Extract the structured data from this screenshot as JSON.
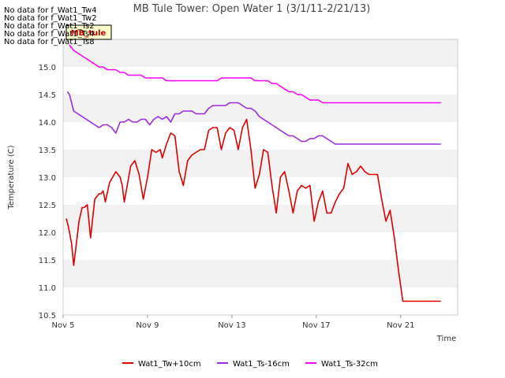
{
  "chart_data": {
    "type": "line",
    "title": "MB Tule Tower: Open Water 1 (3/1/11-2/21/13)",
    "xlabel": "Time",
    "ylabel": "Temperature (C)",
    "xlim": [
      5.0,
      23.7
    ],
    "ylim": [
      10.5,
      15.5
    ],
    "x_ticks": [
      5,
      9,
      13,
      17,
      21
    ],
    "x_tick_labels": [
      "Nov 5",
      "Nov 9",
      "Nov 13",
      "Nov 17",
      "Nov 21"
    ],
    "y_ticks": [
      10.5,
      11.0,
      11.5,
      12.0,
      12.5,
      13.0,
      13.5,
      14.0,
      14.5,
      15.0
    ],
    "y_tick_labels": [
      "10.5",
      "11.0",
      "11.5",
      "12.0",
      "12.5",
      "13.0",
      "13.5",
      "14.0",
      "14.5",
      "15.0"
    ],
    "grid": "horizontal bands",
    "legend_position": "bottom",
    "series": [
      {
        "name": "Wat1_Tw+10cm",
        "color": "#e00000",
        "x": [
          5.15,
          5.25,
          5.4,
          5.5,
          5.6,
          5.75,
          5.9,
          6.0,
          6.15,
          6.3,
          6.5,
          6.7,
          6.8,
          6.9,
          7.0,
          7.2,
          7.5,
          7.7,
          7.8,
          7.9,
          8.2,
          8.4,
          8.6,
          8.8,
          9.0,
          9.2,
          9.4,
          9.6,
          9.7,
          9.9,
          10.1,
          10.3,
          10.5,
          10.7,
          10.9,
          11.1,
          11.3,
          11.5,
          11.7,
          11.9,
          12.1,
          12.3,
          12.5,
          12.7,
          12.9,
          13.1,
          13.3,
          13.5,
          13.7,
          13.9,
          14.1,
          14.3,
          14.5,
          14.7,
          14.9,
          15.1,
          15.3,
          15.5,
          15.7,
          15.9,
          16.1,
          16.3,
          16.5,
          16.7,
          16.9,
          17.1,
          17.3,
          17.5,
          17.7,
          17.9,
          18.1,
          18.3,
          18.5,
          18.7,
          18.9,
          19.1,
          19.3,
          19.5,
          19.7,
          19.9,
          20.1,
          20.3,
          20.5,
          20.7,
          20.9,
          21.1,
          21.3,
          21.5,
          21.7,
          21.9,
          22.1,
          22.2,
          22.3,
          22.5,
          22.7,
          22.9
        ],
        "values": [
          12.25,
          12.1,
          11.8,
          11.4,
          11.7,
          12.2,
          12.45,
          12.45,
          12.5,
          11.9,
          12.6,
          12.7,
          12.7,
          12.75,
          12.55,
          12.9,
          13.1,
          13.0,
          12.85,
          12.55,
          13.2,
          13.3,
          13.05,
          12.6,
          13.0,
          13.5,
          13.45,
          13.5,
          13.35,
          13.6,
          13.8,
          13.75,
          13.1,
          12.85,
          13.3,
          13.4,
          13.45,
          13.5,
          13.5,
          13.85,
          13.9,
          13.9,
          13.5,
          13.8,
          13.9,
          13.85,
          13.5,
          13.9,
          14.05,
          13.5,
          12.8,
          13.05,
          13.5,
          13.45,
          12.85,
          12.35,
          13.0,
          13.1,
          12.75,
          12.35,
          12.75,
          12.85,
          12.8,
          12.85,
          12.2,
          12.55,
          12.75,
          12.35,
          12.35,
          12.55,
          12.7,
          12.8,
          13.25,
          13.05,
          13.1,
          13.2,
          13.1,
          13.05,
          13.05,
          13.05,
          12.6,
          12.2,
          12.4,
          11.9,
          11.3,
          10.75,
          10.75,
          10.75,
          10.75,
          10.75,
          10.75,
          10.75,
          10.75,
          10.75,
          10.75,
          10.75
        ]
      },
      {
        "name": "Wat1_Ts-16cm",
        "color": "#9a2be2",
        "x": [
          5.2,
          5.3,
          5.5,
          5.7,
          5.9,
          6.1,
          6.3,
          6.5,
          6.7,
          6.9,
          7.1,
          7.3,
          7.5,
          7.7,
          7.9,
          8.1,
          8.3,
          8.5,
          8.7,
          8.9,
          9.1,
          9.3,
          9.5,
          9.7,
          9.9,
          10.1,
          10.3,
          10.5,
          10.7,
          10.9,
          11.1,
          11.3,
          11.5,
          11.7,
          11.9,
          12.1,
          12.3,
          12.5,
          12.7,
          12.9,
          13.1,
          13.3,
          13.5,
          13.7,
          13.9,
          14.1,
          14.3,
          14.5,
          14.7,
          14.9,
          15.1,
          15.3,
          15.5,
          15.7,
          15.9,
          16.1,
          16.3,
          16.5,
          16.7,
          16.9,
          17.1,
          17.3,
          17.5,
          17.7,
          17.9,
          18.1,
          18.3,
          18.5,
          18.7,
          18.9,
          19.1,
          19.3,
          19.5,
          19.7,
          19.9,
          20.1,
          20.3,
          20.5,
          20.7,
          20.9,
          21.1,
          21.3,
          21.5,
          21.7,
          21.9,
          22.1,
          22.3,
          22.5,
          22.7,
          22.9
        ],
        "values": [
          14.55,
          14.5,
          14.2,
          14.15,
          14.1,
          14.05,
          14.0,
          13.95,
          13.9,
          13.95,
          13.95,
          13.9,
          13.8,
          14.0,
          14.0,
          14.05,
          14.0,
          14.0,
          14.05,
          14.05,
          13.95,
          14.05,
          14.1,
          14.05,
          14.1,
          14.0,
          14.15,
          14.15,
          14.2,
          14.2,
          14.2,
          14.15,
          14.15,
          14.15,
          14.25,
          14.3,
          14.3,
          14.3,
          14.3,
          14.35,
          14.35,
          14.35,
          14.3,
          14.25,
          14.25,
          14.2,
          14.1,
          14.05,
          14.0,
          13.95,
          13.9,
          13.85,
          13.8,
          13.75,
          13.75,
          13.7,
          13.65,
          13.65,
          13.7,
          13.7,
          13.75,
          13.75,
          13.7,
          13.65,
          13.6,
          13.6,
          13.6,
          13.6,
          13.6,
          13.6,
          13.6,
          13.6,
          13.6,
          13.6,
          13.6,
          13.6,
          13.6,
          13.6,
          13.6,
          13.6,
          13.6,
          13.6,
          13.6,
          13.6,
          13.6,
          13.6,
          13.6,
          13.6,
          13.6,
          13.6
        ]
      },
      {
        "name": "Wat1_Ts-32cm",
        "color": "#ff00ff",
        "x": [
          5.3,
          5.5,
          5.7,
          5.9,
          6.1,
          6.3,
          6.5,
          6.7,
          6.9,
          7.1,
          7.3,
          7.5,
          7.7,
          7.9,
          8.1,
          8.3,
          8.5,
          8.7,
          8.9,
          9.1,
          9.3,
          9.5,
          9.7,
          9.9,
          10.1,
          10.3,
          10.5,
          10.7,
          10.9,
          11.1,
          11.3,
          11.5,
          11.7,
          11.9,
          12.1,
          12.3,
          12.5,
          12.7,
          12.9,
          13.1,
          13.3,
          13.5,
          13.7,
          13.9,
          14.1,
          14.3,
          14.5,
          14.7,
          14.9,
          15.1,
          15.3,
          15.5,
          15.7,
          15.9,
          16.1,
          16.3,
          16.5,
          16.7,
          16.9,
          17.1,
          17.3,
          17.5,
          17.7,
          17.9,
          18.1,
          18.3,
          18.5,
          18.7,
          18.9,
          19.1,
          19.3,
          19.5,
          19.7,
          19.9,
          20.1,
          20.3,
          20.5,
          20.7,
          20.9,
          21.1,
          21.3,
          21.5,
          21.7,
          21.9,
          22.1,
          22.3,
          22.5,
          22.7,
          22.9
        ],
        "values": [
          15.4,
          15.3,
          15.25,
          15.2,
          15.15,
          15.1,
          15.05,
          15.0,
          15.0,
          14.95,
          14.95,
          14.95,
          14.9,
          14.9,
          14.85,
          14.85,
          14.85,
          14.85,
          14.8,
          14.8,
          14.8,
          14.8,
          14.8,
          14.75,
          14.75,
          14.75,
          14.75,
          14.75,
          14.75,
          14.75,
          14.75,
          14.75,
          14.75,
          14.75,
          14.75,
          14.75,
          14.8,
          14.8,
          14.8,
          14.8,
          14.8,
          14.8,
          14.8,
          14.8,
          14.75,
          14.75,
          14.75,
          14.75,
          14.7,
          14.7,
          14.65,
          14.6,
          14.55,
          14.55,
          14.5,
          14.5,
          14.45,
          14.4,
          14.4,
          14.4,
          14.35,
          14.35,
          14.35,
          14.35,
          14.35,
          14.35,
          14.35,
          14.35,
          14.35,
          14.35,
          14.35,
          14.35,
          14.35,
          14.35,
          14.35,
          14.35,
          14.35,
          14.35,
          14.35,
          14.35,
          14.35,
          14.35,
          14.35,
          14.35,
          14.35,
          14.35,
          14.35,
          14.35,
          14.35
        ]
      }
    ]
  },
  "no_data_lines": [
    "No data for f_Wat1_Tw4",
    "No data for f_Wat1_Tw2",
    "No data for f_Wat1_Ts2",
    "No data for f_Wat1_Ts4",
    "No data for f_Wat1_Ts8"
  ],
  "badge_label": "MB_tule",
  "colors": {
    "plot_bg": "#ffffff",
    "band": "#f2f2f2",
    "axis": "#cccccc"
  }
}
